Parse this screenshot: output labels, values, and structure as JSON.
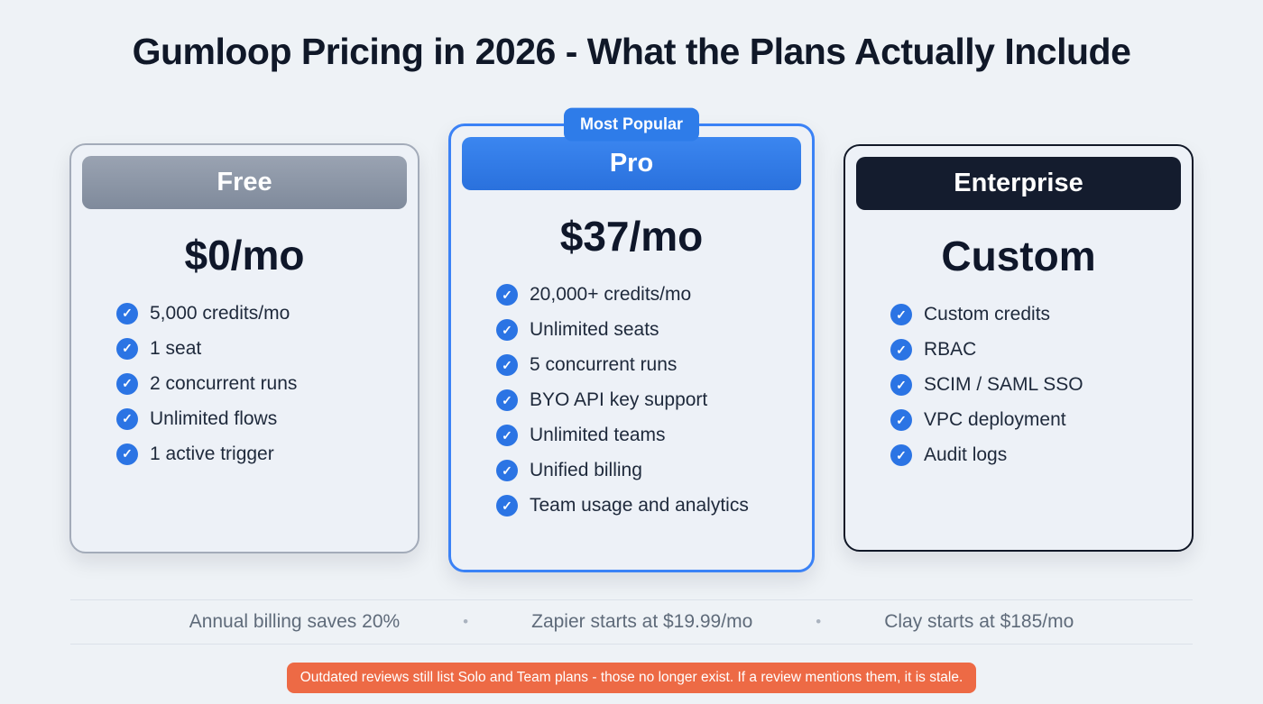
{
  "page": {
    "title": "Gumloop Pricing in 2026 - What the Plans Actually Include"
  },
  "icons": {
    "check": "✓"
  },
  "plans": [
    {
      "name": "Free",
      "price": "$0/mo",
      "features": [
        "5,000 credits/mo",
        "1 seat",
        "2 concurrent runs",
        "Unlimited flows",
        "1 active trigger"
      ]
    },
    {
      "name": "Pro",
      "price": "$37/mo",
      "badge": "Most Popular",
      "features": [
        "20,000+ credits/mo",
        "Unlimited seats",
        "5 concurrent runs",
        "BYO API key support",
        "Unlimited teams",
        "Unified billing",
        "Team usage and analytics"
      ]
    },
    {
      "name": "Enterprise",
      "price": "Custom",
      "features": [
        "Custom credits",
        "RBAC",
        "SCIM / SAML SSO",
        "VPC deployment",
        "Audit logs"
      ]
    }
  ],
  "footer": {
    "separator": "•",
    "notes": [
      "Annual billing saves 20%",
      "Zapier starts at $19.99/mo",
      "Clay starts at $185/mo"
    ]
  },
  "banner": {
    "text": "Outdated reviews still list Solo and Team plans - those no longer exist. If a review mentions them, it is stale."
  },
  "colors": {
    "accent_blue": "#2E7CE9",
    "check_blue": "#2B74E4",
    "dark_navy": "#141C2E",
    "gray_header": "#8C97A7",
    "banner_orange": "#ED6A45",
    "background": "#EEF2F6"
  }
}
